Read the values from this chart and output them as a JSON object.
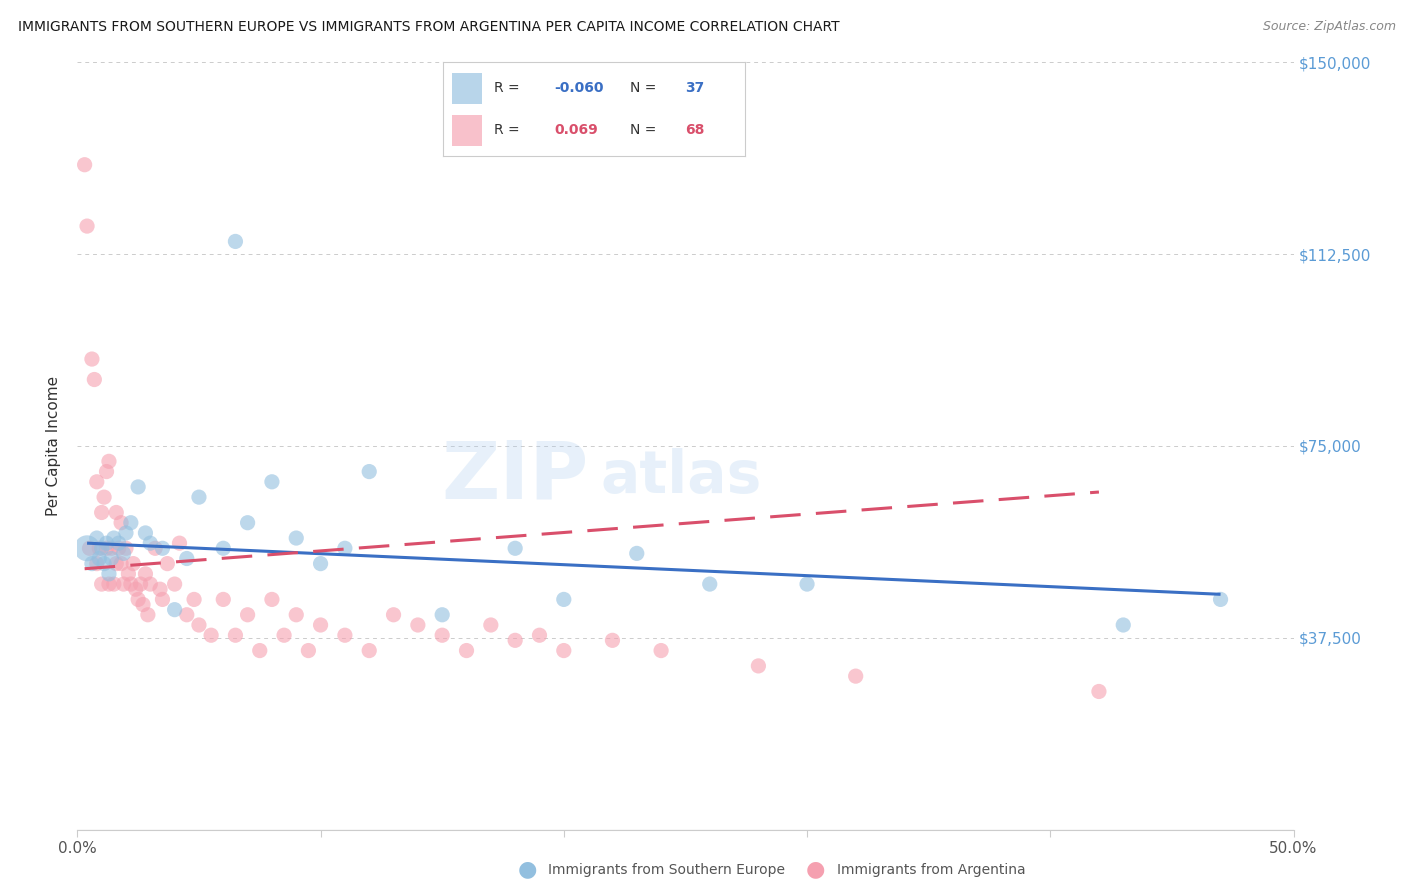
{
  "title": "IMMIGRANTS FROM SOUTHERN EUROPE VS IMMIGRANTS FROM ARGENTINA PER CAPITA INCOME CORRELATION CHART",
  "source": "Source: ZipAtlas.com",
  "ylabel": "Per Capita Income",
  "xlim": [
    0.0,
    0.5
  ],
  "ylim": [
    0,
    150000
  ],
  "yticks": [
    0,
    37500,
    75000,
    112500,
    150000
  ],
  "ytick_labels": [
    "",
    "$37,500",
    "$75,000",
    "$112,500",
    "$150,000"
  ],
  "xticks": [
    0.0,
    0.1,
    0.2,
    0.3,
    0.4,
    0.5
  ],
  "xtick_labels": [
    "0.0%",
    "",
    "",
    "",
    "",
    "50.0%"
  ],
  "blue_R": -0.06,
  "blue_N": 37,
  "pink_R": 0.069,
  "pink_N": 68,
  "blue_color": "#92BFDF",
  "pink_color": "#F5A0B0",
  "blue_label": "Immigrants from Southern Europe",
  "pink_label": "Immigrants from Argentina",
  "watermark_zip": "ZIP",
  "watermark_atlas": "atlas",
  "background_color": "#FFFFFF",
  "grid_color": "#CCCCCC",
  "right_label_color": "#5B9BD5",
  "blue_line_color": "#3A6FC4",
  "pink_line_color": "#D94F6B",
  "blue_points_x": [
    0.004,
    0.006,
    0.008,
    0.009,
    0.01,
    0.011,
    0.012,
    0.013,
    0.014,
    0.015,
    0.017,
    0.019,
    0.02,
    0.022,
    0.025,
    0.028,
    0.03,
    0.035,
    0.04,
    0.045,
    0.05,
    0.06,
    0.065,
    0.07,
    0.08,
    0.09,
    0.1,
    0.11,
    0.12,
    0.15,
    0.18,
    0.2,
    0.23,
    0.26,
    0.3,
    0.43,
    0.47
  ],
  "blue_points_y": [
    55000,
    52000,
    57000,
    53000,
    55000,
    52000,
    56000,
    50000,
    53000,
    57000,
    56000,
    54000,
    58000,
    60000,
    67000,
    58000,
    56000,
    55000,
    43000,
    53000,
    65000,
    55000,
    115000,
    60000,
    68000,
    57000,
    52000,
    55000,
    70000,
    42000,
    55000,
    45000,
    54000,
    48000,
    48000,
    40000,
    45000
  ],
  "blue_sizes": [
    350,
    120,
    120,
    120,
    120,
    120,
    120,
    120,
    120,
    120,
    120,
    120,
    120,
    120,
    120,
    120,
    120,
    120,
    120,
    120,
    120,
    120,
    120,
    120,
    120,
    120,
    120,
    120,
    120,
    120,
    120,
    120,
    120,
    120,
    120,
    120,
    120
  ],
  "pink_points_x": [
    0.003,
    0.004,
    0.005,
    0.006,
    0.007,
    0.008,
    0.008,
    0.009,
    0.01,
    0.01,
    0.011,
    0.012,
    0.012,
    0.013,
    0.013,
    0.014,
    0.015,
    0.016,
    0.016,
    0.017,
    0.018,
    0.018,
    0.019,
    0.02,
    0.021,
    0.022,
    0.023,
    0.024,
    0.025,
    0.026,
    0.027,
    0.028,
    0.029,
    0.03,
    0.032,
    0.034,
    0.035,
    0.037,
    0.04,
    0.042,
    0.045,
    0.048,
    0.05,
    0.055,
    0.06,
    0.065,
    0.07,
    0.075,
    0.08,
    0.085,
    0.09,
    0.095,
    0.1,
    0.11,
    0.12,
    0.13,
    0.14,
    0.15,
    0.16,
    0.17,
    0.18,
    0.19,
    0.2,
    0.22,
    0.24,
    0.28,
    0.32,
    0.42
  ],
  "pink_points_y": [
    130000,
    118000,
    55000,
    92000,
    88000,
    52000,
    68000,
    55000,
    48000,
    62000,
    65000,
    55000,
    70000,
    48000,
    72000,
    55000,
    48000,
    52000,
    62000,
    55000,
    60000,
    52000,
    48000,
    55000,
    50000,
    48000,
    52000,
    47000,
    45000,
    48000,
    44000,
    50000,
    42000,
    48000,
    55000,
    47000,
    45000,
    52000,
    48000,
    56000,
    42000,
    45000,
    40000,
    38000,
    45000,
    38000,
    42000,
    35000,
    45000,
    38000,
    42000,
    35000,
    40000,
    38000,
    35000,
    42000,
    40000,
    38000,
    35000,
    40000,
    37000,
    38000,
    35000,
    37000,
    35000,
    32000,
    30000,
    27000
  ],
  "pink_sizes": [
    120,
    120,
    120,
    120,
    120,
    120,
    120,
    120,
    120,
    120,
    120,
    120,
    120,
    120,
    120,
    120,
    120,
    120,
    120,
    120,
    120,
    120,
    120,
    120,
    120,
    120,
    120,
    120,
    120,
    120,
    120,
    120,
    120,
    120,
    120,
    120,
    120,
    120,
    120,
    120,
    120,
    120,
    120,
    120,
    120,
    120,
    120,
    120,
    120,
    120,
    120,
    120,
    120,
    120,
    120,
    120,
    120,
    120,
    120,
    120,
    120,
    120,
    120,
    120,
    120,
    120,
    120,
    120
  ],
  "blue_trend_x": [
    0.004,
    0.47
  ],
  "blue_trend_y": [
    56000,
    46000
  ],
  "pink_trend_x": [
    0.003,
    0.42
  ],
  "pink_trend_y": [
    51000,
    66000
  ]
}
